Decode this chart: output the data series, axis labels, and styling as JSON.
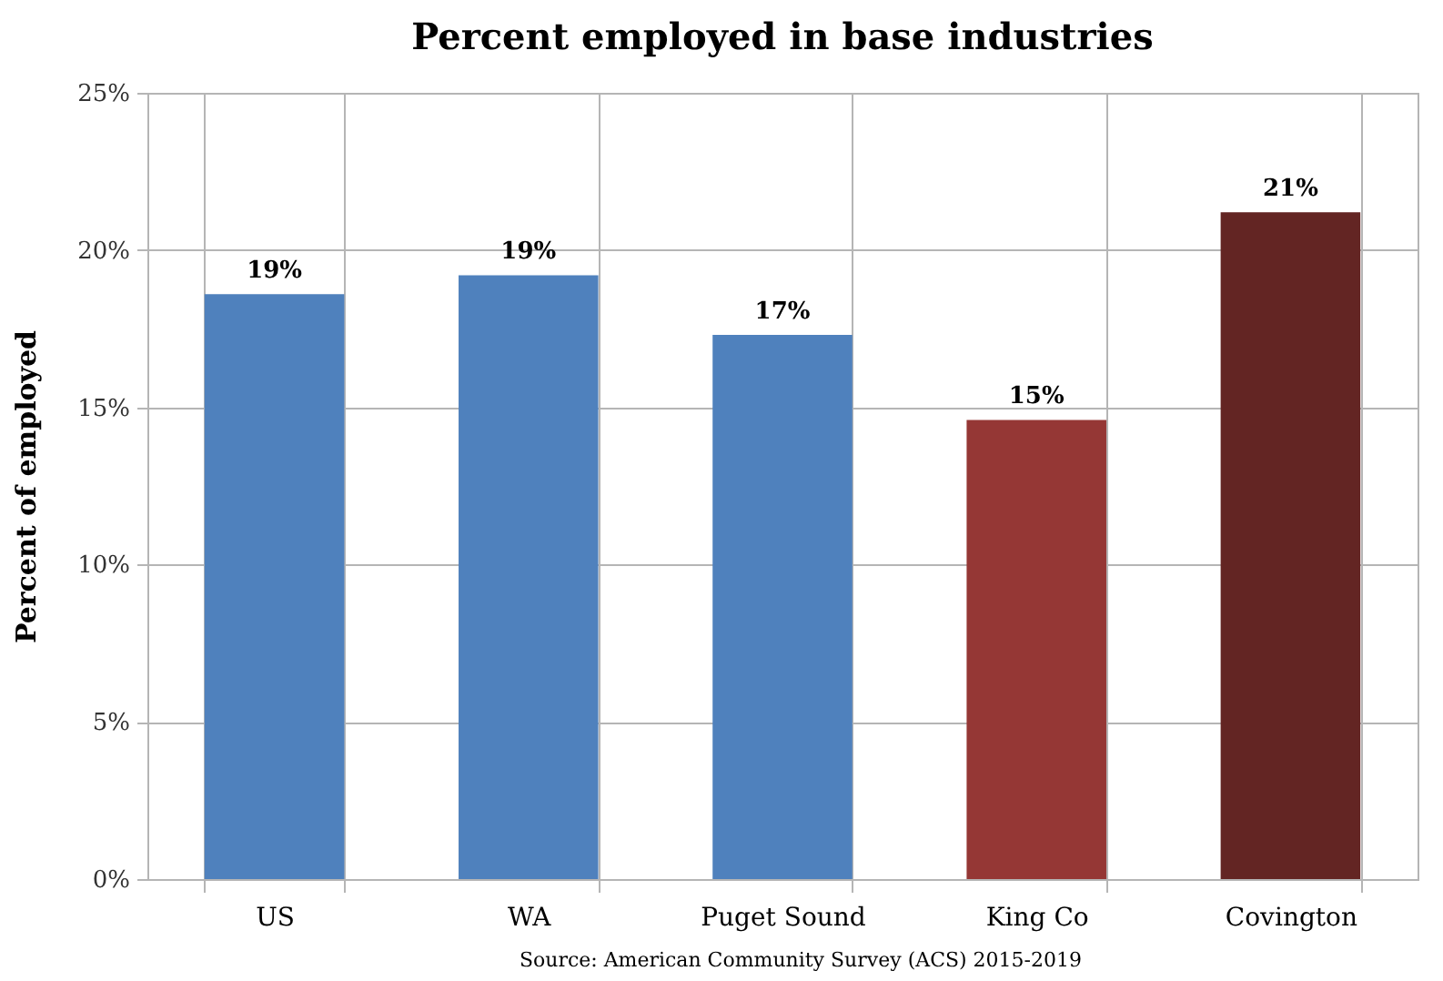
{
  "chart_data": {
    "type": "bar",
    "title": "Percent employed in base industries",
    "ylabel": "Percent of employed",
    "categories": [
      "US",
      "WA",
      "Puget Sound",
      "King Co",
      "Covington"
    ],
    "values": [
      18.6,
      19.2,
      17.3,
      14.6,
      21.2
    ],
    "colors": [
      "#4f81bd",
      "#4f81bd",
      "#4f81bd",
      "#953735",
      "#632523"
    ],
    "value_labels": [
      "19%",
      "19%",
      "17%",
      "15%",
      "21%"
    ],
    "ylim": [
      0,
      25
    ],
    "yticks": [
      {
        "value": 0,
        "label": "0%"
      },
      {
        "value": 5,
        "label": "5%"
      },
      {
        "value": 10,
        "label": "10%"
      },
      {
        "value": 15,
        "label": "15%"
      },
      {
        "value": 20,
        "label": "20%"
      },
      {
        "value": 25,
        "label": "25%"
      }
    ],
    "grid": true,
    "annotations": [
      "Source: American Community Survey (ACS) 2015-2019"
    ]
  }
}
